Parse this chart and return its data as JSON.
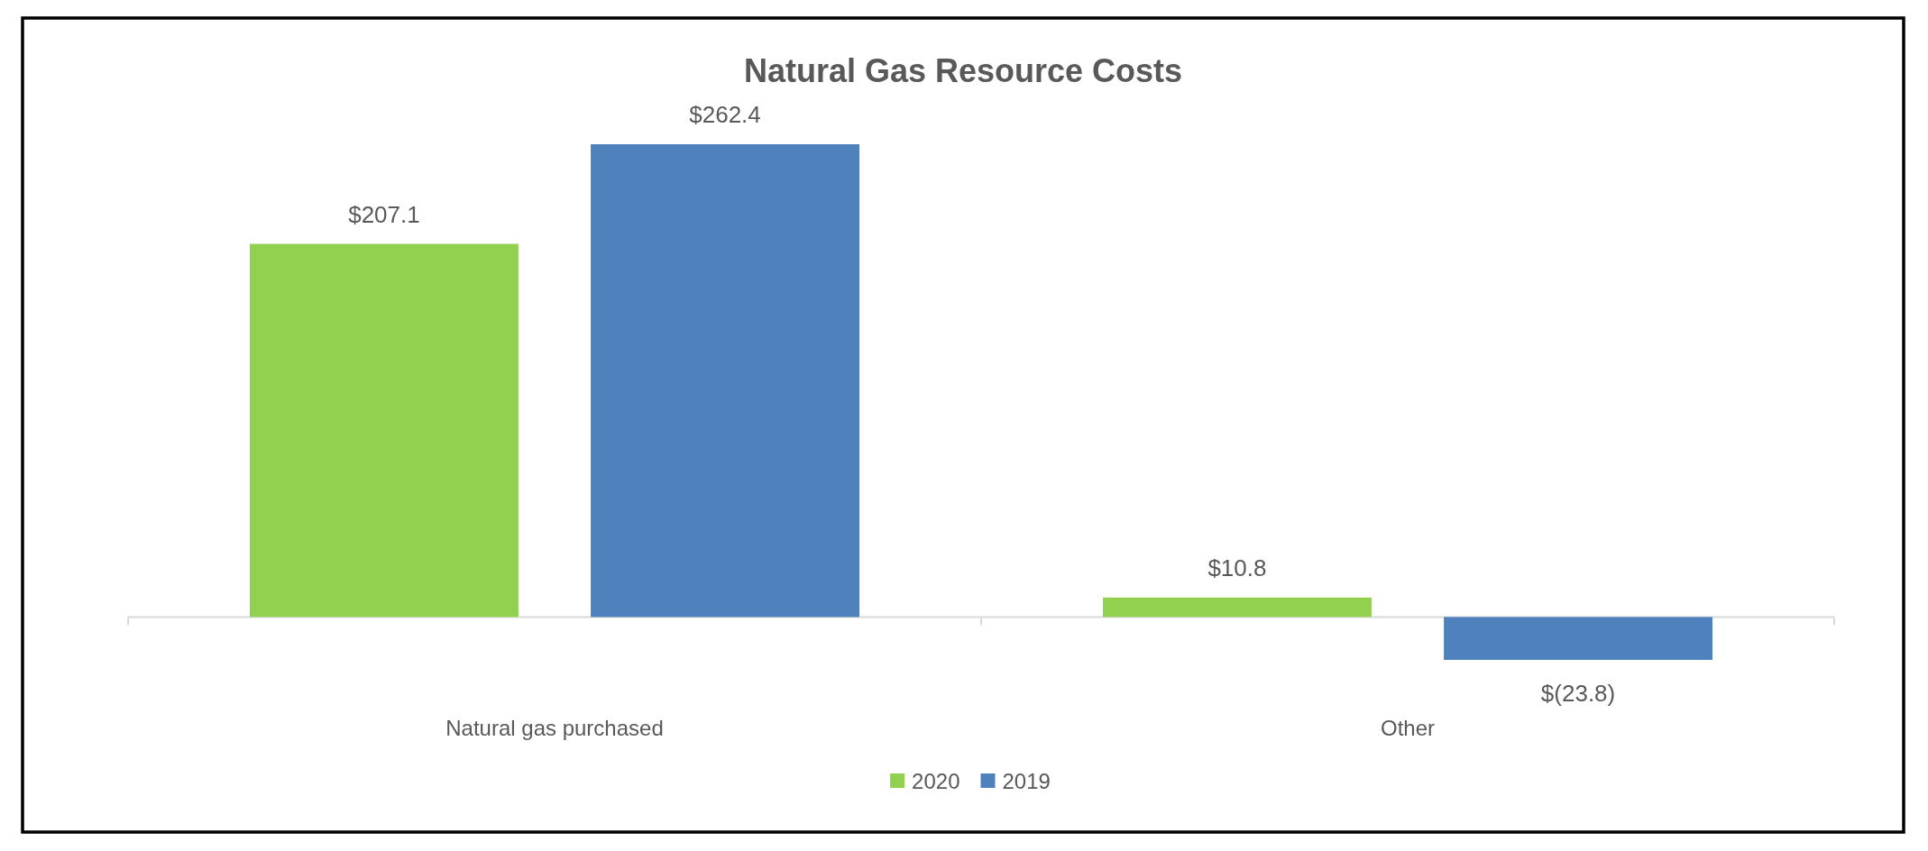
{
  "chart_data": {
    "type": "bar",
    "title": "Natural Gas Resource Costs",
    "categories": [
      "Natural gas purchased",
      "Other"
    ],
    "series": [
      {
        "name": "2020",
        "color": "#92d050",
        "values": [
          207.1,
          10.8
        ],
        "value_labels": [
          "$207.1",
          "$10.8"
        ]
      },
      {
        "name": "2019",
        "color": "#4f81bd",
        "values": [
          262.4,
          -23.8
        ],
        "value_labels": [
          "$262.4",
          "$(23.8)"
        ]
      }
    ],
    "legend": "bottom"
  }
}
